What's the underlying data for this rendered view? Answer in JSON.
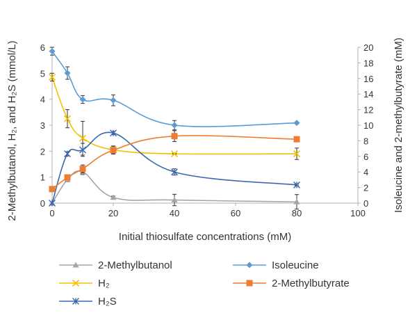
{
  "chart_data": {
    "type": "line",
    "xlabel": "Initial thiosulfate concentrations (mM)",
    "ylabel_left": "2-Methylbutanol, H₂, and H₂S (mmol/L)",
    "ylabel_right": "Isoleucine and 2-methylbutyrate (mM)",
    "xlim": [
      0,
      100
    ],
    "ylim_left": [
      0,
      6
    ],
    "ylim_right": [
      0,
      20
    ],
    "x_ticks": [
      "0",
      "20",
      "40",
      "60",
      "80",
      "100"
    ],
    "y_left_ticks": [
      "0",
      "1",
      "2",
      "3",
      "4",
      "5",
      "6"
    ],
    "y_right_ticks": [
      "0",
      "2",
      "4",
      "6",
      "8",
      "10",
      "12",
      "14",
      "16",
      "18",
      "20"
    ],
    "grid": false,
    "legend_position": "bottom",
    "series": [
      {
        "name": "2-Methylbutanol",
        "axis": "left",
        "color": "#a5a5a5",
        "marker": "triangle",
        "x": [
          0,
          5,
          10,
          20,
          40,
          80
        ],
        "y": [
          0,
          0.9,
          1.2,
          0.22,
          0.12,
          0.05
        ],
        "err": [
          0,
          0.08,
          0.1,
          0.05,
          0.22,
          0.28
        ]
      },
      {
        "name": "H₂",
        "axis": "left",
        "color": "#f5c000",
        "marker": "x",
        "x": [
          0,
          5,
          10,
          20,
          40,
          80
        ],
        "y": [
          4.85,
          3.25,
          2.5,
          2.05,
          1.9,
          1.9
        ],
        "err": [
          0.15,
          0.35,
          0.65,
          0.15,
          0.02,
          0.22
        ]
      },
      {
        "name": "H₂S",
        "axis": "left",
        "color": "#3a68b0",
        "marker": "asterisk",
        "x": [
          0,
          5,
          10,
          20,
          40,
          80
        ],
        "y": [
          0,
          1.9,
          2.05,
          2.7,
          1.2,
          0.7
        ],
        "err": [
          0,
          0.08,
          0.25,
          0.06,
          0.12,
          0.03
        ]
      },
      {
        "name": "Isoleucine",
        "axis": "right",
        "color": "#5b9bd5",
        "marker": "diamond",
        "x": [
          0,
          5,
          10,
          20,
          40,
          80
        ],
        "y": [
          19.5,
          16.7,
          13.3,
          13.2,
          10.0,
          10.3
        ],
        "err": [
          0.5,
          0.8,
          0.5,
          0.7,
          0.6,
          0.1
        ]
      },
      {
        "name": "2-Methylbutyrate",
        "axis": "right",
        "color": "#ed7d31",
        "marker": "square",
        "x": [
          0,
          5,
          10,
          20,
          40,
          80
        ],
        "y": [
          1.8,
          3.3,
          4.4,
          6.8,
          8.6,
          8.2
        ],
        "err": [
          0.1,
          0.3,
          0.5,
          0.5,
          0.7,
          0.3
        ]
      }
    ]
  }
}
